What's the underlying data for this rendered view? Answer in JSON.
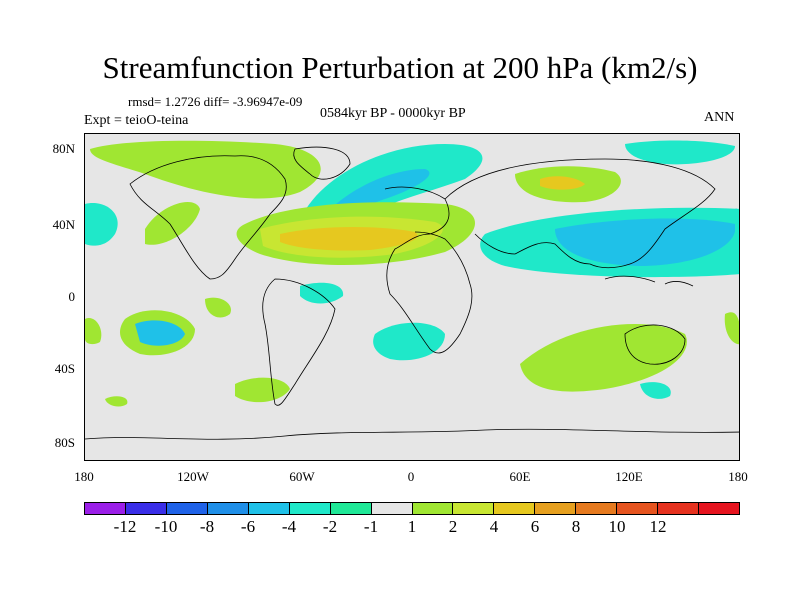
{
  "title": "Streamfunction Perturbation at 200 hPa (km2/s)",
  "stats": "rmsd= 1.2726 diff= -3.96947e-09",
  "experiment": "Expt = teioO-teina",
  "period": "0584kyr BP - 0000kyr BP",
  "season": "ANN",
  "y_ticks": [
    "80N",
    "40N",
    "0",
    "40S",
    "80S"
  ],
  "x_ticks": [
    "180",
    "120W",
    "60W",
    "0",
    "60E",
    "120E",
    "180"
  ],
  "colorbar": {
    "colors": [
      "#9b1fe8",
      "#3a2ee8",
      "#1f62e8",
      "#1f8fe8",
      "#1fc1e8",
      "#1fe8c9",
      "#1fe897",
      "#e6e6e6",
      "#a0e632",
      "#c8e632",
      "#e6c81f",
      "#e6a01f",
      "#e67a1f",
      "#e6541f",
      "#e6321f",
      "#e6141f"
    ],
    "labels": [
      "-12",
      "-10",
      "-8",
      "-6",
      "-4",
      "-2",
      "-1",
      "1",
      "2",
      "4",
      "6",
      "8",
      "10",
      "12"
    ]
  }
}
